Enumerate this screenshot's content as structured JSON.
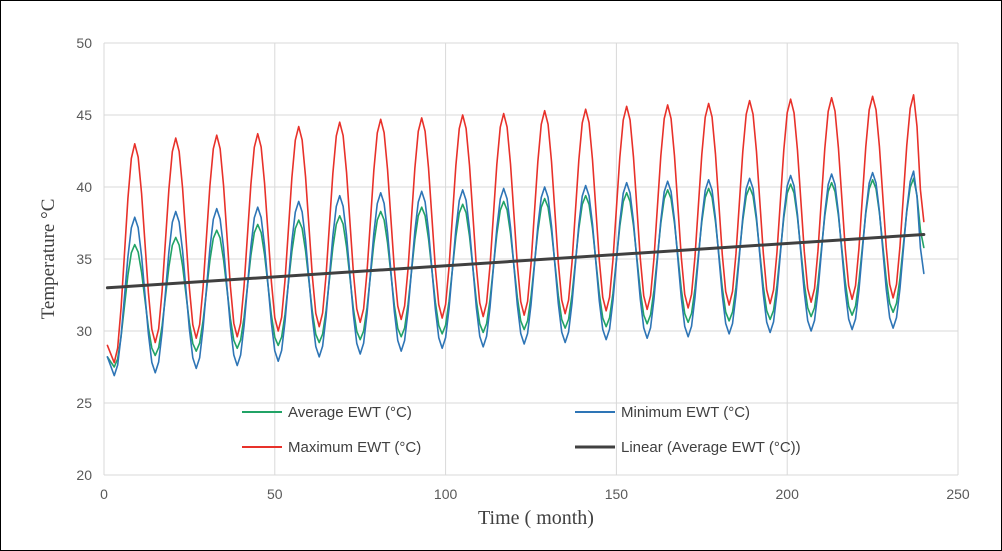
{
  "chart_data": {
    "type": "line",
    "title": "",
    "xlabel": "Time ( month)",
    "ylabel": "Temperature °C",
    "xlim": [
      0,
      250
    ],
    "ylim": [
      20,
      50
    ],
    "xticks": [
      0,
      50,
      100,
      150,
      200,
      250
    ],
    "yticks": [
      20,
      25,
      30,
      35,
      40,
      45,
      50
    ],
    "grid": true,
    "legend_position": "bottom-center, inside plot, two columns",
    "x_range": [
      1,
      240
    ],
    "series": [
      {
        "name": "Average EWT (°C)",
        "color": "#21A366",
        "description": "yearly periodic oscillation, peaks at months 9,21,...,237; troughs at months 3,15,...,231",
        "peaks": [
          36.0,
          36.5,
          37.0,
          37.4,
          37.7,
          38.0,
          38.3,
          38.6,
          38.8,
          39.0,
          39.2,
          39.4,
          39.6,
          39.8,
          39.9,
          40.0,
          40.2,
          40.3,
          40.5,
          40.6
        ],
        "troughs": [
          27.5,
          28.3,
          28.6,
          28.8,
          29.0,
          29.2,
          29.4,
          29.6,
          29.8,
          29.9,
          30.1,
          30.2,
          30.3,
          30.5,
          30.6,
          30.7,
          30.8,
          31.0,
          31.1,
          31.3
        ],
        "start_value": 28.2,
        "end_value": 35.8
      },
      {
        "name": "Minimum EWT (°C)",
        "color": "#2E75B6",
        "description": "yearly periodic oscillation, peaks at months 9,21,...,237; troughs at months 3,15,...,231",
        "peaks": [
          37.9,
          38.3,
          38.5,
          38.6,
          39.0,
          39.4,
          39.6,
          39.7,
          39.8,
          39.9,
          40.0,
          40.1,
          40.3,
          40.4,
          40.5,
          40.6,
          40.8,
          40.9,
          41.0,
          41.1
        ],
        "troughs": [
          26.9,
          27.1,
          27.4,
          27.6,
          27.9,
          28.2,
          28.4,
          28.6,
          28.8,
          28.9,
          29.1,
          29.2,
          29.4,
          29.5,
          29.6,
          29.8,
          29.9,
          30.0,
          30.1,
          30.2
        ],
        "start_value": 28.2,
        "end_value": 34.0
      },
      {
        "name": "Maximum EWT (°C)",
        "color": "#E8312A",
        "description": "yearly periodic oscillation, peaks at months 9,21,...,237; troughs at months 3,15,...,231",
        "peaks": [
          43.0,
          43.4,
          43.6,
          43.7,
          44.2,
          44.5,
          44.7,
          44.8,
          45.0,
          45.1,
          45.3,
          45.4,
          45.6,
          45.7,
          45.8,
          46.0,
          46.1,
          46.2,
          46.3,
          46.4
        ],
        "troughs": [
          27.8,
          29.2,
          29.5,
          29.6,
          30.0,
          30.3,
          30.6,
          30.8,
          30.9,
          31.0,
          31.1,
          31.2,
          31.4,
          31.5,
          31.6,
          31.8,
          31.9,
          32.0,
          32.2,
          32.3
        ],
        "start_value": 29.0,
        "end_value": 37.6
      },
      {
        "name": "Linear (Average EWT (°C))",
        "color": "#404040",
        "trendline": true,
        "x": [
          1,
          240
        ],
        "values": [
          33.0,
          36.7
        ]
      }
    ]
  }
}
